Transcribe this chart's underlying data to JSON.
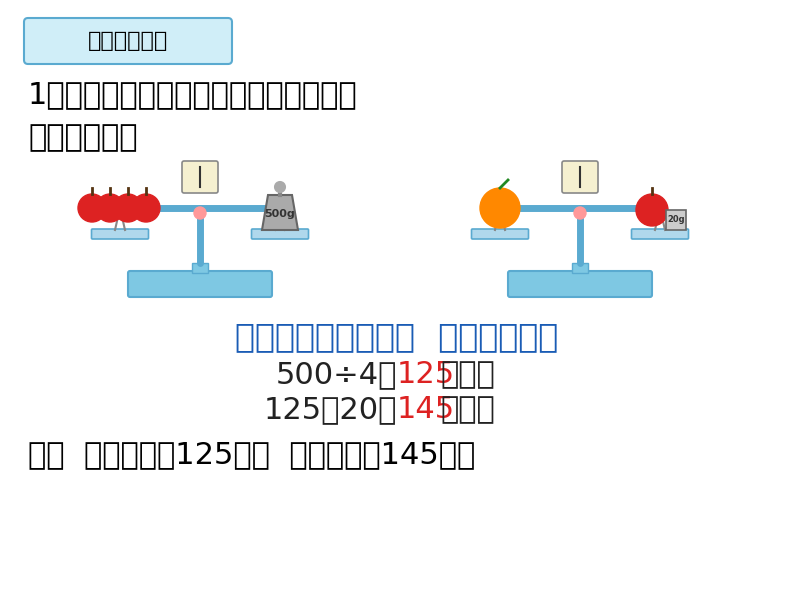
{
  "bg_color": "#ffffff",
  "title_box_text": "二、拓展练习",
  "title_box_bg": "#d0eef8",
  "title_box_border": "#5aaad0",
  "question_text": "1、根据已知条件提出不同的问题，并说\n说怎么解答。",
  "question_color": "#000000",
  "question_fontsize": 22,
  "blue_question": "一个苹果重多少克？  一个橙子呢？",
  "blue_color": "#1a5cb5",
  "calc_line1_black": "500÷4＝",
  "calc_line1_red": "125",
  "calc_line1_suffix": "（克）",
  "calc_line2_black": "125＋20＝",
  "calc_line2_red": "145",
  "calc_line2_suffix": "（克）",
  "answer_text_black1": "答：  一个苹果重125克，  一个橙子重145克。",
  "answer_color": "#000000",
  "calc_fontsize": 22,
  "answer_fontsize": 22,
  "blue_question_fontsize": 24
}
